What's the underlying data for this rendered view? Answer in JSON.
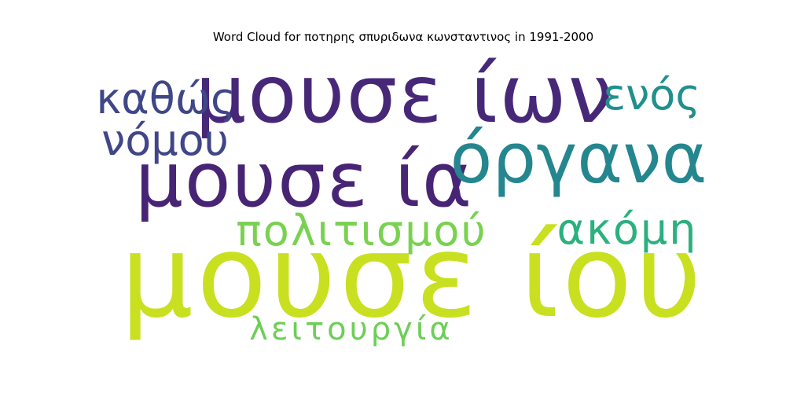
{
  "chart_data": {
    "type": "wordcloud",
    "title": "Word Cloud for ποτηρης σπυριδωνα κωνσταντινος in 1991-2000",
    "words": [
      {
        "text": "μουσε ίου",
        "weight": 1.0,
        "color": "#c8e020"
      },
      {
        "text": "μουσε ίων",
        "weight": 0.78,
        "color": "#472878"
      },
      {
        "text": "μουσε ία",
        "weight": 0.74,
        "color": "#482475"
      },
      {
        "text": "όργανα",
        "weight": 0.66,
        "color": "#24868e"
      },
      {
        "text": "πολιτισμού",
        "weight": 0.4,
        "color": "#7ad151"
      },
      {
        "text": "ακόμη",
        "weight": 0.4,
        "color": "#2bb07f"
      },
      {
        "text": "καθώς",
        "weight": 0.4,
        "color": "#3f4788"
      },
      {
        "text": "ενός",
        "weight": 0.4,
        "color": "#21908d"
      },
      {
        "text": "νόμου",
        "weight": 0.4,
        "color": "#404688"
      },
      {
        "text": "λειτουργία",
        "weight": 0.32,
        "color": "#6ece58"
      }
    ]
  }
}
